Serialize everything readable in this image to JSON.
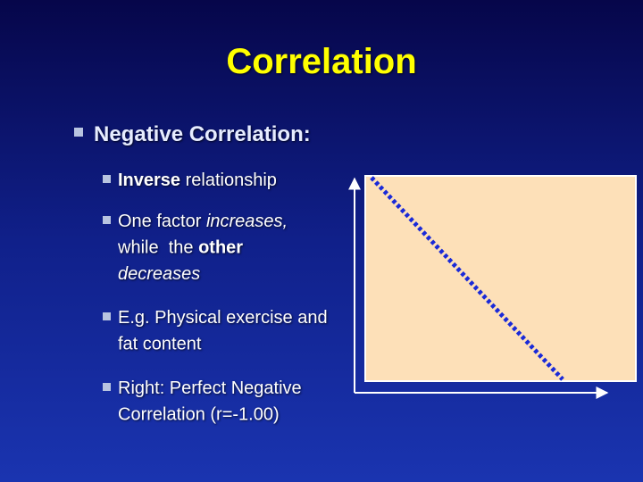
{
  "title": "Correlation",
  "heading": "Negative Correlation:",
  "items": [
    {
      "lines": [
        [
          {
            "text": "Inverse",
            "style": "bold"
          },
          {
            "text": " relationship",
            "style": "normal"
          }
        ]
      ]
    },
    {
      "lines": [
        [
          {
            "text": "One factor ",
            "style": "normal"
          },
          {
            "text": "increases,",
            "style": "italic"
          }
        ],
        [
          {
            "text": "while  the ",
            "style": "normal"
          },
          {
            "text": "other",
            "style": "bold"
          }
        ],
        [
          {
            "text": "decreases",
            "style": "italic"
          }
        ]
      ]
    },
    {
      "lines": [
        [
          {
            "text": "E.g. Physical exercise and",
            "style": "normal"
          }
        ],
        [
          {
            "text": "fat content",
            "style": "normal"
          }
        ]
      ]
    },
    {
      "lines": [
        [
          {
            "text": "Right: Perfect Negative",
            "style": "normal"
          }
        ],
        [
          {
            "text": "Correlation (r=-1.00)",
            "style": "normal"
          }
        ]
      ]
    }
  ]
}
